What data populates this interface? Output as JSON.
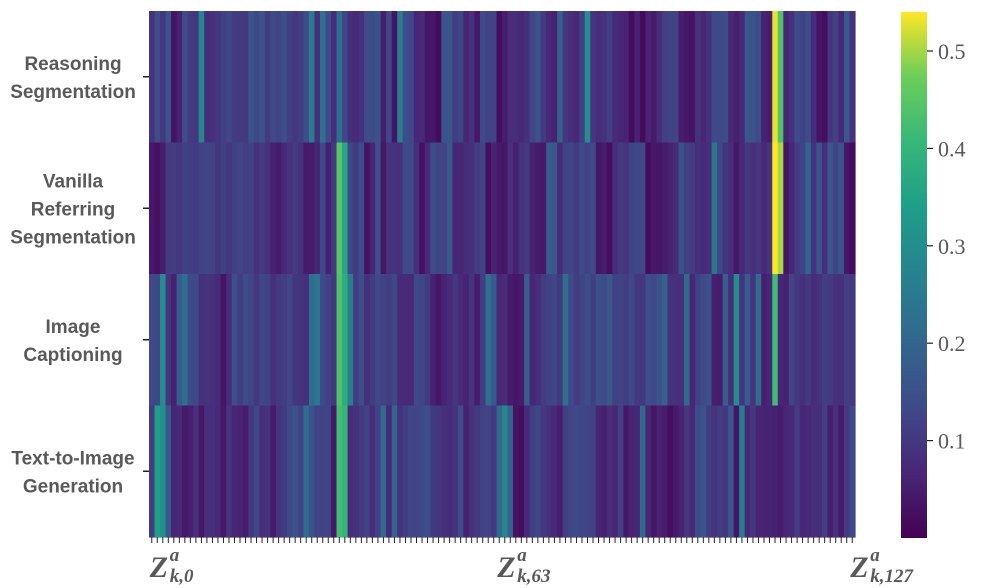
{
  "chart_data": {
    "type": "heatmap",
    "title": "",
    "rows": [
      [
        "Reasoning",
        "Segmentation"
      ],
      [
        "Vanilla",
        "Referring",
        "Segmentation"
      ],
      [
        "Image",
        "Captioning"
      ],
      [
        "Text-to-Image",
        "Generation"
      ]
    ],
    "n_columns": 128,
    "x_tick_labels": [
      {
        "index": 0,
        "main": "Z",
        "sub": "k,0",
        "sup": "a"
      },
      {
        "index": 63,
        "main": "Z",
        "sub": "k,63",
        "sup": "a"
      },
      {
        "index": 127,
        "main": "Z",
        "sub": "k,127",
        "sup": "a"
      }
    ],
    "colorbar": {
      "colormap": "viridis",
      "min": 0.0,
      "max": 0.54,
      "ticks": [
        "0.1",
        "0.2",
        "0.3",
        "0.4",
        "0.5"
      ],
      "tick_values": [
        0.1,
        0.2,
        0.3,
        0.4,
        0.5
      ]
    },
    "highlights": [
      {
        "row": 0,
        "col": 9,
        "value": 0.28
      },
      {
        "row": 0,
        "col": 34,
        "value": 0.22
      },
      {
        "row": 0,
        "col": 45,
        "value": 0.26
      },
      {
        "row": 0,
        "col": 79,
        "value": 0.3
      },
      {
        "row": 0,
        "col": 113,
        "value": 0.53
      },
      {
        "row": 0,
        "col": 114,
        "value": 0.44
      },
      {
        "row": 1,
        "col": 34,
        "value": 0.45
      },
      {
        "row": 1,
        "col": 35,
        "value": 0.36
      },
      {
        "row": 1,
        "col": 113,
        "value": 0.54
      },
      {
        "row": 1,
        "col": 114,
        "value": 0.5
      },
      {
        "row": 2,
        "col": 2,
        "value": 0.3
      },
      {
        "row": 2,
        "col": 34,
        "value": 0.44
      },
      {
        "row": 2,
        "col": 35,
        "value": 0.38
      },
      {
        "row": 2,
        "col": 113,
        "value": 0.42
      },
      {
        "row": 2,
        "col": 106,
        "value": 0.3
      },
      {
        "row": 3,
        "col": 1,
        "value": 0.34
      },
      {
        "row": 3,
        "col": 2,
        "value": 0.3
      },
      {
        "row": 3,
        "col": 34,
        "value": 0.42
      },
      {
        "row": 3,
        "col": 35,
        "value": 0.4
      },
      {
        "row": 3,
        "col": 64,
        "value": 0.28
      },
      {
        "row": 3,
        "col": 107,
        "value": 0.26
      }
    ]
  }
}
